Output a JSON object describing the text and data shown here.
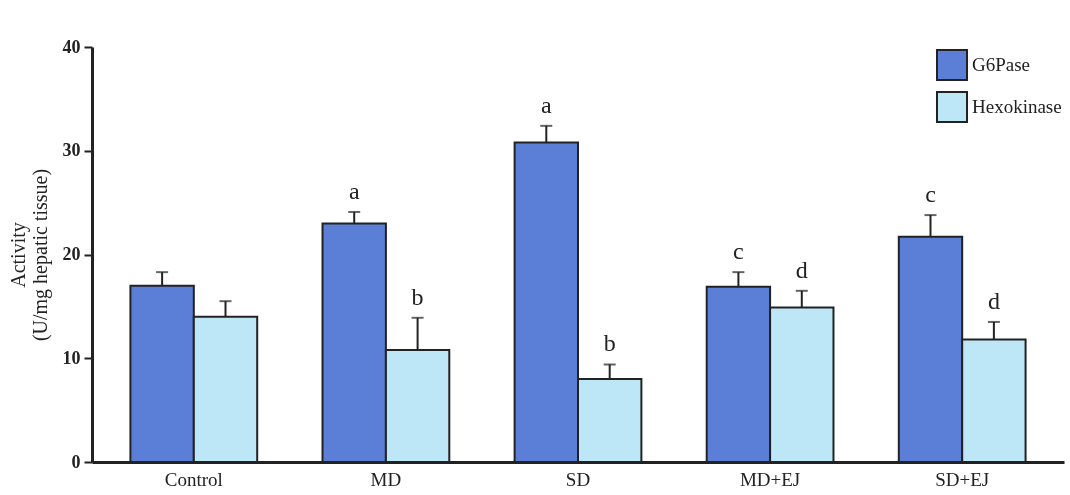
{
  "chart_data": {
    "type": "bar",
    "ylabel": "Activity\n(U/mg hepatic tissue)",
    "categories": [
      "Control",
      "MD",
      "SD",
      "MD+EJ",
      "SD+EJ"
    ],
    "series": [
      {
        "name": "G6Pase",
        "color": "#5b7fd6",
        "values": [
          17,
          23,
          30.8,
          16.9,
          21.7
        ],
        "errors": [
          [
            17,
            18.3
          ],
          [
            23,
            24.1
          ],
          [
            30.8,
            32.4
          ],
          [
            16.9,
            18.3
          ],
          [
            21.7,
            23.8
          ]
        ]
      },
      {
        "name": "Hexokinase",
        "color": "#bde6f6",
        "values": [
          14,
          10.8,
          8,
          14.9,
          11.8
        ],
        "errors": [
          [
            14,
            15.5
          ],
          [
            10.8,
            13.9
          ],
          [
            8,
            9.4
          ],
          [
            14.9,
            16.5
          ],
          [
            11.8,
            13.5
          ]
        ]
      }
    ],
    "annotations": [
      {
        "text": "a",
        "x": "MD",
        "y": 23
      },
      {
        "text": "b",
        "x": "MD",
        "y": 10.8
      },
      {
        "text": "a",
        "x": "SD",
        "y": 30.8
      },
      {
        "text": "b",
        "x": "SD",
        "y": 8
      },
      {
        "text": "c",
        "x": "MD+EJ",
        "y": 16.9
      },
      {
        "text": "d",
        "x": "MD+EJ",
        "y": 14.9
      },
      {
        "text": "c",
        "x": "SD+EJ",
        "y": 21.7
      },
      {
        "text": "d",
        "x": "SD+EJ",
        "y": 11.8
      }
    ],
    "ylim": [
      0,
      40
    ],
    "yticks": [
      0,
      10,
      20,
      30,
      40
    ],
    "grid": false,
    "legend": "top right"
  }
}
